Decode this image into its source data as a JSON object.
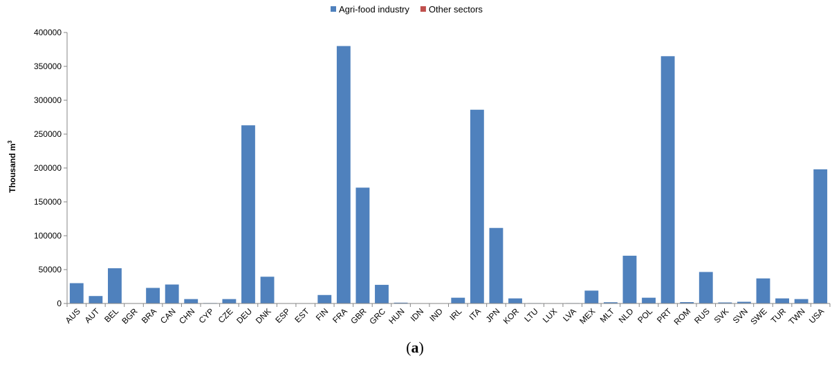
{
  "chart_data": {
    "type": "bar",
    "ylabel": "Thousand  m",
    "ylabel_sup": "3",
    "panel_label_open": "(",
    "panel_label_letter": "a",
    "panel_label_close": ")",
    "ylim": [
      0,
      400000
    ],
    "yticks": [
      0,
      50000,
      100000,
      150000,
      200000,
      250000,
      300000,
      350000,
      400000
    ],
    "grid": false,
    "legend_position": "top-center",
    "categories": [
      "AUS",
      "AUT",
      "BEL",
      "BGR",
      "BRA",
      "CAN",
      "CHN",
      "CYP",
      "CZE",
      "DEU",
      "DNK",
      "ESP",
      "EST",
      "FIN",
      "FRA",
      "GBR",
      "GRC",
      "HUN",
      "IDN",
      "IND",
      "IRL",
      "ITA",
      "JPN",
      "KOR",
      "LTU",
      "LUX",
      "LVA",
      "MEX",
      "MLT",
      "NLD",
      "POL",
      "PRT",
      "ROM",
      "RUS",
      "SVK",
      "SVN",
      "SWE",
      "TUR",
      "TWN",
      "USA"
    ],
    "series": [
      {
        "name": "Agri-food industry",
        "color": "#4f81bd",
        "values": [
          30000,
          11000,
          52000,
          300,
          23000,
          28000,
          6500,
          700,
          6500,
          263000,
          39500,
          300,
          300,
          12500,
          380000,
          171000,
          27500,
          1200,
          300,
          300,
          8500,
          286000,
          111500,
          7500,
          600,
          300,
          600,
          19000,
          1800,
          70500,
          8500,
          365000,
          2000,
          46500,
          1500,
          2500,
          37000,
          7500,
          6500,
          198000
        ]
      },
      {
        "name": "Other sectors",
        "color": "#c0504d",
        "values": [
          0,
          0,
          0,
          0,
          0,
          0,
          0,
          0,
          0,
          0,
          0,
          0,
          0,
          0,
          0,
          0,
          0,
          0,
          0,
          0,
          0,
          0,
          0,
          0,
          0,
          0,
          0,
          0,
          0,
          0,
          0,
          0,
          0,
          0,
          0,
          0,
          0,
          0,
          0,
          0
        ]
      }
    ]
  }
}
